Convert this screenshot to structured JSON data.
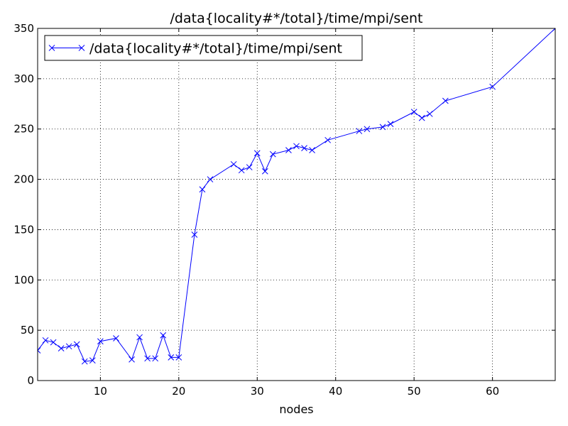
{
  "chart_data": {
    "type": "line",
    "title": "/data{locality#*/total}/time/mpi/sent",
    "xlabel": "nodes",
    "ylabel": "",
    "xlim": [
      2,
      68
    ],
    "ylim": [
      0,
      350
    ],
    "xticks": [
      10,
      20,
      30,
      40,
      50,
      60
    ],
    "yticks": [
      0,
      50,
      100,
      150,
      200,
      250,
      300,
      350
    ],
    "grid": true,
    "legend_position": "top-left",
    "series": [
      {
        "name": "/data{locality#*/total}/time/mpi/sent",
        "color": "#0000ff",
        "marker": "x",
        "x": [
          2,
          3,
          4,
          5,
          6,
          7,
          8,
          9,
          10,
          12,
          14,
          15,
          16,
          17,
          18,
          19,
          20,
          22,
          23,
          24,
          27,
          28,
          29,
          30,
          31,
          32,
          34,
          35,
          36,
          37,
          39,
          43,
          44,
          46,
          47,
          50,
          51,
          52,
          54,
          60,
          68
        ],
        "y": [
          30,
          40,
          38,
          32,
          34,
          36,
          19,
          20,
          39,
          42,
          21,
          43,
          22,
          22,
          45,
          23,
          23,
          145,
          190,
          200,
          215,
          209,
          212,
          226,
          208,
          225,
          229,
          233,
          231,
          229,
          239,
          248,
          250,
          252,
          255,
          267,
          261,
          265,
          278,
          292,
          350
        ]
      }
    ]
  }
}
